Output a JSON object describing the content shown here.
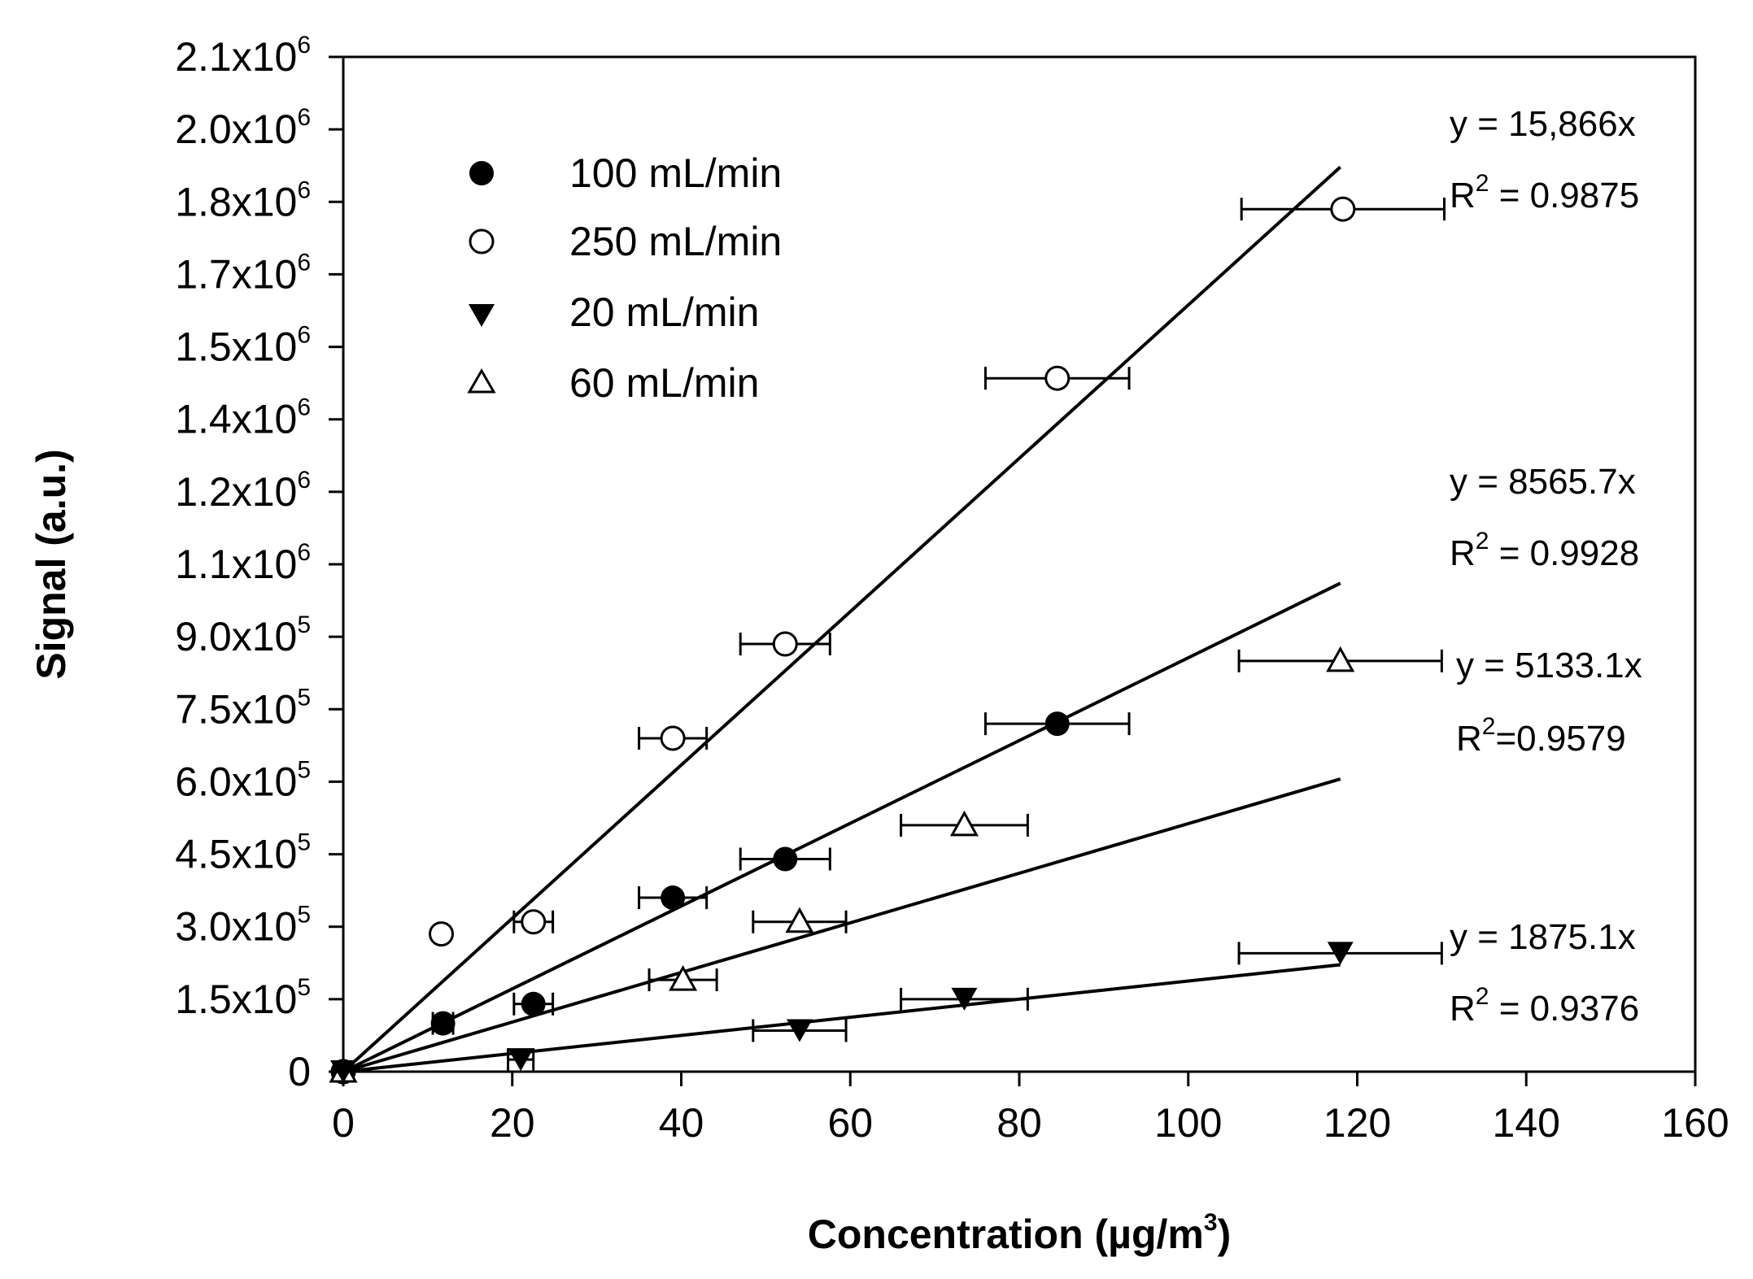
{
  "chart_data": {
    "type": "scatter",
    "title": "",
    "xlabel": "Concentration (µg/m",
    "xlabel_sup": "3",
    "xlabel_end": ")",
    "ylabel": "Signal (a.u.)",
    "xlim": [
      0,
      160
    ],
    "ylim": [
      0,
      2100000
    ],
    "x_ticks": [
      {
        "value": 0,
        "label": "0"
      },
      {
        "value": 20,
        "label": "20"
      },
      {
        "value": 40,
        "label": "40"
      },
      {
        "value": 60,
        "label": "60"
      },
      {
        "value": 80,
        "label": "80"
      },
      {
        "value": 100,
        "label": "100"
      },
      {
        "value": 120,
        "label": "120"
      },
      {
        "value": 140,
        "label": "140"
      },
      {
        "value": 160,
        "label": "160"
      }
    ],
    "y_ticks": [
      {
        "value": 0,
        "base": "0",
        "exp": ""
      },
      {
        "value": 150000,
        "base": "1.5x10",
        "exp": "5"
      },
      {
        "value": 300000,
        "base": "3.0x10",
        "exp": "5"
      },
      {
        "value": 450000,
        "base": "4.5x10",
        "exp": "5"
      },
      {
        "value": 600000,
        "base": "6.0x10",
        "exp": "5"
      },
      {
        "value": 750000,
        "base": "7.5x10",
        "exp": "5"
      },
      {
        "value": 900000,
        "base": "9.0x10",
        "exp": "5"
      },
      {
        "value": 1050000,
        "base": "1.1x10",
        "exp": "6"
      },
      {
        "value": 1200000,
        "base": "1.2x10",
        "exp": "6"
      },
      {
        "value": 1350000,
        "base": "1.4x10",
        "exp": "6"
      },
      {
        "value": 1500000,
        "base": "1.5x10",
        "exp": "6"
      },
      {
        "value": 1650000,
        "base": "1.7x10",
        "exp": "6"
      },
      {
        "value": 1800000,
        "base": "1.8x10",
        "exp": "6"
      },
      {
        "value": 1950000,
        "base": "2.0x10",
        "exp": "6"
      },
      {
        "value": 2100000,
        "base": "2.1x10",
        "exp": "6"
      }
    ],
    "legend": {
      "position": "top-left",
      "entries": [
        {
          "name": "100 mL/min",
          "marker": "filled-circle"
        },
        {
          "name": "250 mL/min",
          "marker": "open-circle"
        },
        {
          "name": "20 mL/min",
          "marker": "filled-triangle-down"
        },
        {
          "name": "60 mL/min",
          "marker": "open-triangle-up"
        }
      ]
    },
    "series": [
      {
        "name": "250 mL/min",
        "marker": "open-circle",
        "slope": 15866,
        "fit_x_end": 118,
        "points": [
          {
            "x": 0,
            "y": 0,
            "xerr": 0
          },
          {
            "x": 11.6,
            "y": 285000,
            "xerr": 0
          },
          {
            "x": 22.5,
            "y": 310000,
            "xerr": 2.3
          },
          {
            "x": 39,
            "y": 690000,
            "xerr": 4
          },
          {
            "x": 52.3,
            "y": 885000,
            "xerr": 5.3
          },
          {
            "x": 84.5,
            "y": 1435000,
            "xerr": 8.5
          },
          {
            "x": 118.3,
            "y": 1785000,
            "xerr": 12
          }
        ]
      },
      {
        "name": "100 mL/min",
        "marker": "filled-circle",
        "slope": 8565.7,
        "fit_x_end": 118,
        "points": [
          {
            "x": 0,
            "y": 0,
            "xerr": 0
          },
          {
            "x": 11.8,
            "y": 100000,
            "xerr": 1.2
          },
          {
            "x": 22.5,
            "y": 140000,
            "xerr": 2.3
          },
          {
            "x": 39,
            "y": 360000,
            "xerr": 4
          },
          {
            "x": 52.3,
            "y": 440000,
            "xerr": 5.3
          },
          {
            "x": 84.5,
            "y": 720000,
            "xerr": 8.5
          }
        ]
      },
      {
        "name": "60 mL/min",
        "marker": "open-triangle-up",
        "slope": 5133.1,
        "fit_x_end": 118,
        "points": [
          {
            "x": 0,
            "y": 0,
            "xerr": 0
          },
          {
            "x": 40.2,
            "y": 190000,
            "xerr": 4
          },
          {
            "x": 54,
            "y": 310000,
            "xerr": 5.5
          },
          {
            "x": 73.5,
            "y": 510000,
            "xerr": 7.5
          },
          {
            "x": 118,
            "y": 850000,
            "xerr": 12
          }
        ]
      },
      {
        "name": "20 mL/min",
        "marker": "filled-triangle-down",
        "slope": 1875.1,
        "fit_x_end": 118,
        "points": [
          {
            "x": 0,
            "y": 0,
            "xerr": 0
          },
          {
            "x": 21,
            "y": 25000,
            "xerr": 1.5
          },
          {
            "x": 54,
            "y": 85000,
            "xerr": 5.5
          },
          {
            "x": 73.5,
            "y": 150000,
            "xerr": 7.5
          },
          {
            "x": 118,
            "y": 245000,
            "xerr": 12
          }
        ]
      }
    ],
    "annotations": [
      {
        "id": "eq-250",
        "equation": "y = 15,866x",
        "r2_prefix": "R",
        "r2_sup": "2",
        "r2_value": " = 0.9875"
      },
      {
        "id": "eq-100",
        "equation": "y = 8565.7x",
        "r2_prefix": "R",
        "r2_sup": "2",
        "r2_value": " = 0.9928"
      },
      {
        "id": "eq-60",
        "equation": "y = 5133.1x",
        "r2_prefix": "R",
        "r2_sup": "2",
        "r2_value": "=0.9579"
      },
      {
        "id": "eq-20",
        "equation": "y = 1875.1x",
        "r2_prefix": "R",
        "r2_sup": "2",
        "r2_value": " = 0.9376"
      }
    ]
  }
}
